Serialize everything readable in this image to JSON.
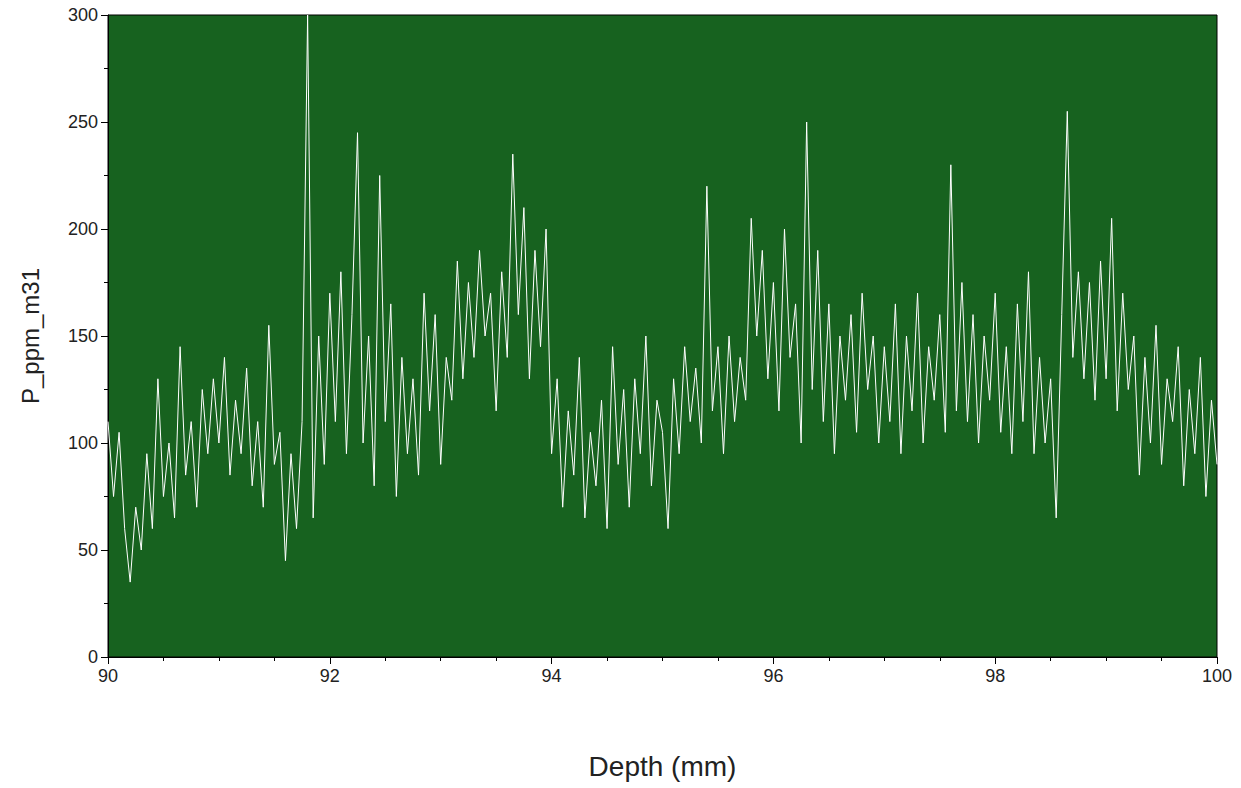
{
  "chart_data": {
    "type": "line",
    "x_label": "Depth (mm)",
    "y_label": "P_ppm_m31",
    "color": "#ffffff",
    "line_style": "solid",
    "grid": false,
    "xlim": [
      90,
      100
    ],
    "xticks": [
      90,
      92,
      94,
      96,
      98,
      100
    ],
    "ylim": [
      0,
      300
    ],
    "yticks": [
      0,
      50,
      100,
      150,
      200,
      250,
      300
    ],
    "x": [
      90,
      90.05,
      90.1,
      90.15,
      90.2,
      90.25,
      90.3,
      90.35,
      90.4,
      90.45,
      90.5,
      90.55,
      90.6,
      90.65,
      90.7,
      90.75,
      90.8,
      90.85,
      90.9,
      90.95,
      91,
      91.05,
      91.1,
      91.15,
      91.2,
      91.25,
      91.3,
      91.35,
      91.4,
      91.45,
      91.5,
      91.55,
      91.6,
      91.65,
      91.7,
      91.75,
      91.8,
      91.85,
      91.9,
      91.95,
      92,
      92.05,
      92.1,
      92.15,
      92.2,
      92.25,
      92.3,
      92.35,
      92.4,
      92.45,
      92.5,
      92.55,
      92.6,
      92.65,
      92.7,
      92.75,
      92.8,
      92.85,
      92.9,
      92.95,
      93,
      93.05,
      93.1,
      93.15,
      93.2,
      93.25,
      93.3,
      93.35,
      93.4,
      93.45,
      93.5,
      93.55,
      93.6,
      93.65,
      93.7,
      93.75,
      93.8,
      93.85,
      93.9,
      93.95,
      94,
      94.05,
      94.1,
      94.15,
      94.2,
      94.25,
      94.3,
      94.35,
      94.4,
      94.45,
      94.5,
      94.55,
      94.6,
      94.65,
      94.7,
      94.75,
      94.8,
      94.85,
      94.9,
      94.95,
      95,
      95.05,
      95.1,
      95.15,
      95.2,
      95.25,
      95.3,
      95.35,
      95.4,
      95.45,
      95.5,
      95.55,
      95.6,
      95.65,
      95.7,
      95.75,
      95.8,
      95.85,
      95.9,
      95.95,
      96,
      96.05,
      96.1,
      96.15,
      96.2,
      96.25,
      96.3,
      96.35,
      96.4,
      96.45,
      96.5,
      96.55,
      96.6,
      96.65,
      96.7,
      96.75,
      96.8,
      96.85,
      96.9,
      96.95,
      97,
      97.05,
      97.1,
      97.15,
      97.2,
      97.25,
      97.3,
      97.35,
      97.4,
      97.45,
      97.5,
      97.55,
      97.6,
      97.65,
      97.7,
      97.75,
      97.8,
      97.85,
      97.9,
      97.95,
      98,
      98.05,
      98.1,
      98.15,
      98.2,
      98.25,
      98.3,
      98.35,
      98.4,
      98.45,
      98.5,
      98.55,
      98.6,
      98.65,
      98.7,
      98.75,
      98.8,
      98.85,
      98.9,
      98.95,
      99,
      99.05,
      99.1,
      99.15,
      99.2,
      99.25,
      99.3,
      99.35,
      99.4,
      99.45,
      99.5,
      99.55,
      99.6,
      99.65,
      99.7,
      99.75,
      99.8,
      99.85,
      99.9,
      99.95,
      100
    ],
    "values": [
      110,
      75,
      105,
      60,
      35,
      70,
      50,
      95,
      60,
      130,
      75,
      100,
      65,
      145,
      85,
      110,
      70,
      125,
      95,
      130,
      100,
      140,
      85,
      120,
      95,
      135,
      80,
      110,
      70,
      155,
      90,
      105,
      45,
      95,
      60,
      110,
      300,
      65,
      150,
      90,
      170,
      110,
      180,
      95,
      160,
      245,
      100,
      150,
      80,
      225,
      110,
      165,
      75,
      140,
      95,
      130,
      85,
      170,
      115,
      160,
      90,
      140,
      120,
      185,
      130,
      175,
      140,
      190,
      150,
      170,
      115,
      180,
      140,
      235,
      160,
      210,
      130,
      190,
      145,
      200,
      95,
      130,
      70,
      115,
      85,
      140,
      65,
      105,
      80,
      120,
      60,
      145,
      90,
      125,
      70,
      130,
      95,
      150,
      80,
      120,
      105,
      60,
      130,
      95,
      145,
      110,
      135,
      100,
      220,
      115,
      145,
      95,
      150,
      110,
      140,
      120,
      205,
      150,
      190,
      130,
      175,
      115,
      200,
      140,
      165,
      100,
      250,
      125,
      190,
      110,
      165,
      95,
      150,
      120,
      160,
      105,
      170,
      125,
      150,
      100,
      145,
      110,
      165,
      95,
      150,
      115,
      170,
      100,
      145,
      120,
      160,
      105,
      230,
      115,
      175,
      110,
      160,
      100,
      150,
      120,
      170,
      105,
      145,
      95,
      165,
      110,
      180,
      95,
      140,
      100,
      130,
      65,
      160,
      255,
      140,
      180,
      130,
      175,
      120,
      185,
      130,
      205,
      115,
      170,
      125,
      150,
      85,
      140,
      100,
      155,
      90,
      130,
      110,
      145,
      80,
      125,
      95,
      140,
      75,
      120,
      90
    ]
  }
}
